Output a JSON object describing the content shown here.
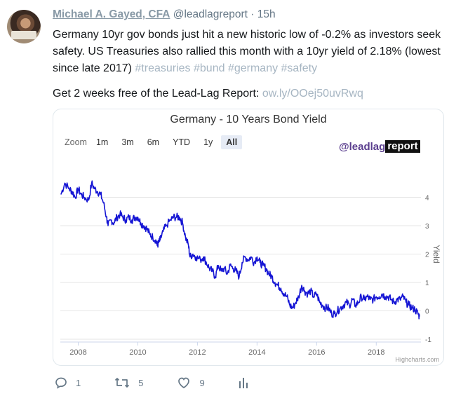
{
  "tweet": {
    "author": "Michael A. Gayed, CFA",
    "handle": "@leadlagreport",
    "separator": "·",
    "time": "15h",
    "text": "Germany 10yr gov bonds just hit a new historic low of -0.2% as investors seek safety. US Treasuries also rallied this month with a 10yr yield of 2.18% (lowest since late 2017) ",
    "hashtags": "#treasuries #bund #germany #safety",
    "promo_text": "Get 2 weeks free of the Lead-Lag Report: ",
    "promo_link": "ow.ly/OOej50uvRwq"
  },
  "card": {
    "zoom_label": "Zoom",
    "zoom_options": [
      "1m",
      "3m",
      "6m",
      "YTD",
      "1y",
      "All"
    ],
    "zoom_selected": "All",
    "brand_part1": "@leadlag",
    "brand_part2": "report",
    "credits": "Highcharts.com"
  },
  "chart_data": {
    "type": "line",
    "title": "Germany - 10 Years Bond Yield",
    "ylabel": "Yield",
    "xlabel": "",
    "xlim": [
      2007.4,
      2019.5
    ],
    "ylim": [
      -1,
      5
    ],
    "x_ticks": [
      2008,
      2010,
      2012,
      2014,
      2016,
      2018
    ],
    "y_ticks": [
      -1,
      0,
      1,
      2,
      3,
      4
    ],
    "grid": true,
    "series_color": "#1515d4",
    "x": [
      2007.42,
      2007.55,
      2007.7,
      2007.8,
      2007.9,
      2008.0,
      2008.1,
      2008.2,
      2008.35,
      2008.45,
      2008.55,
      2008.65,
      2008.75,
      2008.85,
      2008.95,
      2009.0,
      2009.1,
      2009.2,
      2009.3,
      2009.4,
      2009.5,
      2009.6,
      2009.7,
      2009.8,
      2009.9,
      2010.0,
      2010.1,
      2010.2,
      2010.3,
      2010.4,
      2010.5,
      2010.6,
      2010.65,
      2010.7,
      2010.75,
      2010.85,
      2010.95,
      2011.1,
      2011.2,
      2011.3,
      2011.4,
      2011.5,
      2011.6,
      2011.7,
      2011.75,
      2011.85,
      2011.95,
      2012.1,
      2012.2,
      2012.3,
      2012.4,
      2012.5,
      2012.6,
      2012.7,
      2012.8,
      2012.9,
      2013.0,
      2013.1,
      2013.2,
      2013.3,
      2013.4,
      2013.5,
      2013.6,
      2013.7,
      2013.8,
      2013.9,
      2014.0,
      2014.1,
      2014.2,
      2014.3,
      2014.4,
      2014.5,
      2014.6,
      2014.7,
      2014.8,
      2014.9,
      2015.0,
      2015.1,
      2015.2,
      2015.3,
      2015.4,
      2015.5,
      2015.6,
      2015.7,
      2015.8,
      2015.9,
      2016.0,
      2016.1,
      2016.2,
      2016.3,
      2016.4,
      2016.5,
      2016.6,
      2016.7,
      2016.8,
      2016.9,
      2017.0,
      2017.1,
      2017.2,
      2017.3,
      2017.4,
      2017.5,
      2017.6,
      2017.7,
      2017.8,
      2017.9,
      2018.0,
      2018.1,
      2018.2,
      2018.3,
      2018.4,
      2018.5,
      2018.6,
      2018.7,
      2018.8,
      2018.9,
      2019.0,
      2019.1,
      2019.2,
      2019.3,
      2019.4,
      2019.45
    ],
    "y": [
      4.1,
      4.5,
      4.3,
      4.2,
      4.0,
      4.3,
      4.1,
      4.0,
      3.9,
      4.5,
      4.3,
      4.2,
      4.1,
      3.8,
      3.3,
      3.0,
      3.2,
      3.1,
      3.3,
      3.4,
      3.3,
      3.2,
      3.3,
      3.2,
      3.3,
      3.3,
      3.1,
      3.0,
      2.9,
      2.7,
      2.6,
      2.5,
      2.3,
      2.4,
      2.5,
      2.8,
      3.0,
      3.2,
      3.3,
      3.3,
      3.3,
      3.1,
      2.6,
      2.3,
      1.9,
      2.0,
      1.9,
      1.8,
      1.9,
      1.7,
      1.5,
      1.4,
      1.2,
      1.6,
      1.4,
      1.5,
      1.3,
      1.6,
      1.5,
      1.4,
      1.2,
      1.7,
      1.9,
      1.8,
      1.9,
      1.7,
      1.9,
      1.7,
      1.6,
      1.5,
      1.3,
      1.2,
      1.0,
      0.9,
      0.8,
      0.6,
      0.5,
      0.2,
      0.1,
      0.3,
      0.5,
      0.9,
      0.7,
      0.6,
      0.7,
      0.5,
      0.6,
      0.3,
      0.2,
      0.1,
      0.1,
      -0.1,
      -0.1,
      0.0,
      0.1,
      0.2,
      0.3,
      0.2,
      0.4,
      0.2,
      0.3,
      0.5,
      0.4,
      0.5,
      0.4,
      0.4,
      0.5,
      0.5,
      0.6,
      0.5,
      0.5,
      0.4,
      0.3,
      0.4,
      0.4,
      0.5,
      0.3,
      0.2,
      0.1,
      0.05,
      -0.1,
      -0.2
    ]
  },
  "actions": {
    "replies": "1",
    "retweets": "5",
    "likes": "9"
  }
}
